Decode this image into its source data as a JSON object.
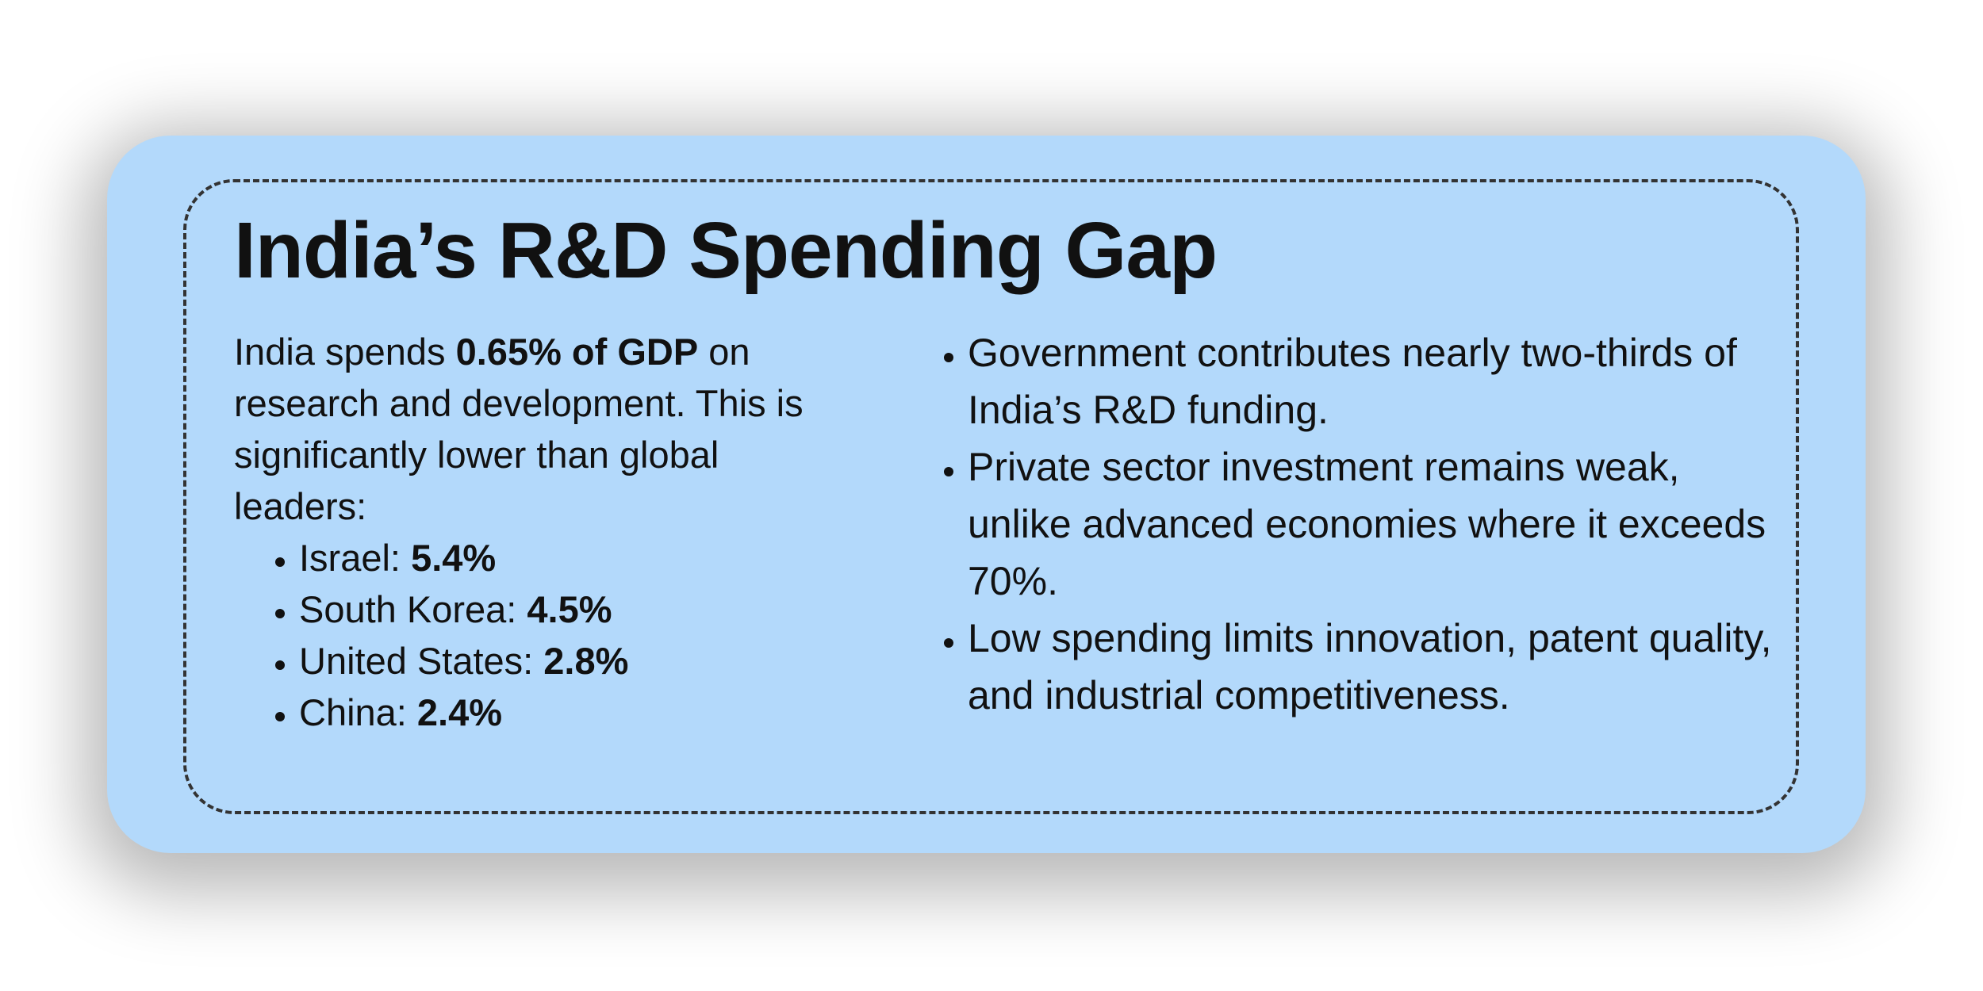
{
  "title": "India’s R&D Spending Gap",
  "intro": {
    "before": "India spends",
    "emphasis": "0.65% of GDP",
    "after": "on research and development. This is significantly lower than global leaders:"
  },
  "leaders": [
    {
      "country": "Israel:",
      "value": "5.4%"
    },
    {
      "country": "South Korea:",
      "value": "4.5%"
    },
    {
      "country": "United States:",
      "value": "2.8%"
    },
    {
      "country": "China:",
      "value": "2.4%"
    }
  ],
  "points": [
    "Government contributes nearly two-thirds of India’s R&D funding.",
    "Private sector investment remains weak, unlike advanced economies where it exceeds 70%.",
    "Low spending limits innovation, patent quality, and industrial competitiveness."
  ]
}
